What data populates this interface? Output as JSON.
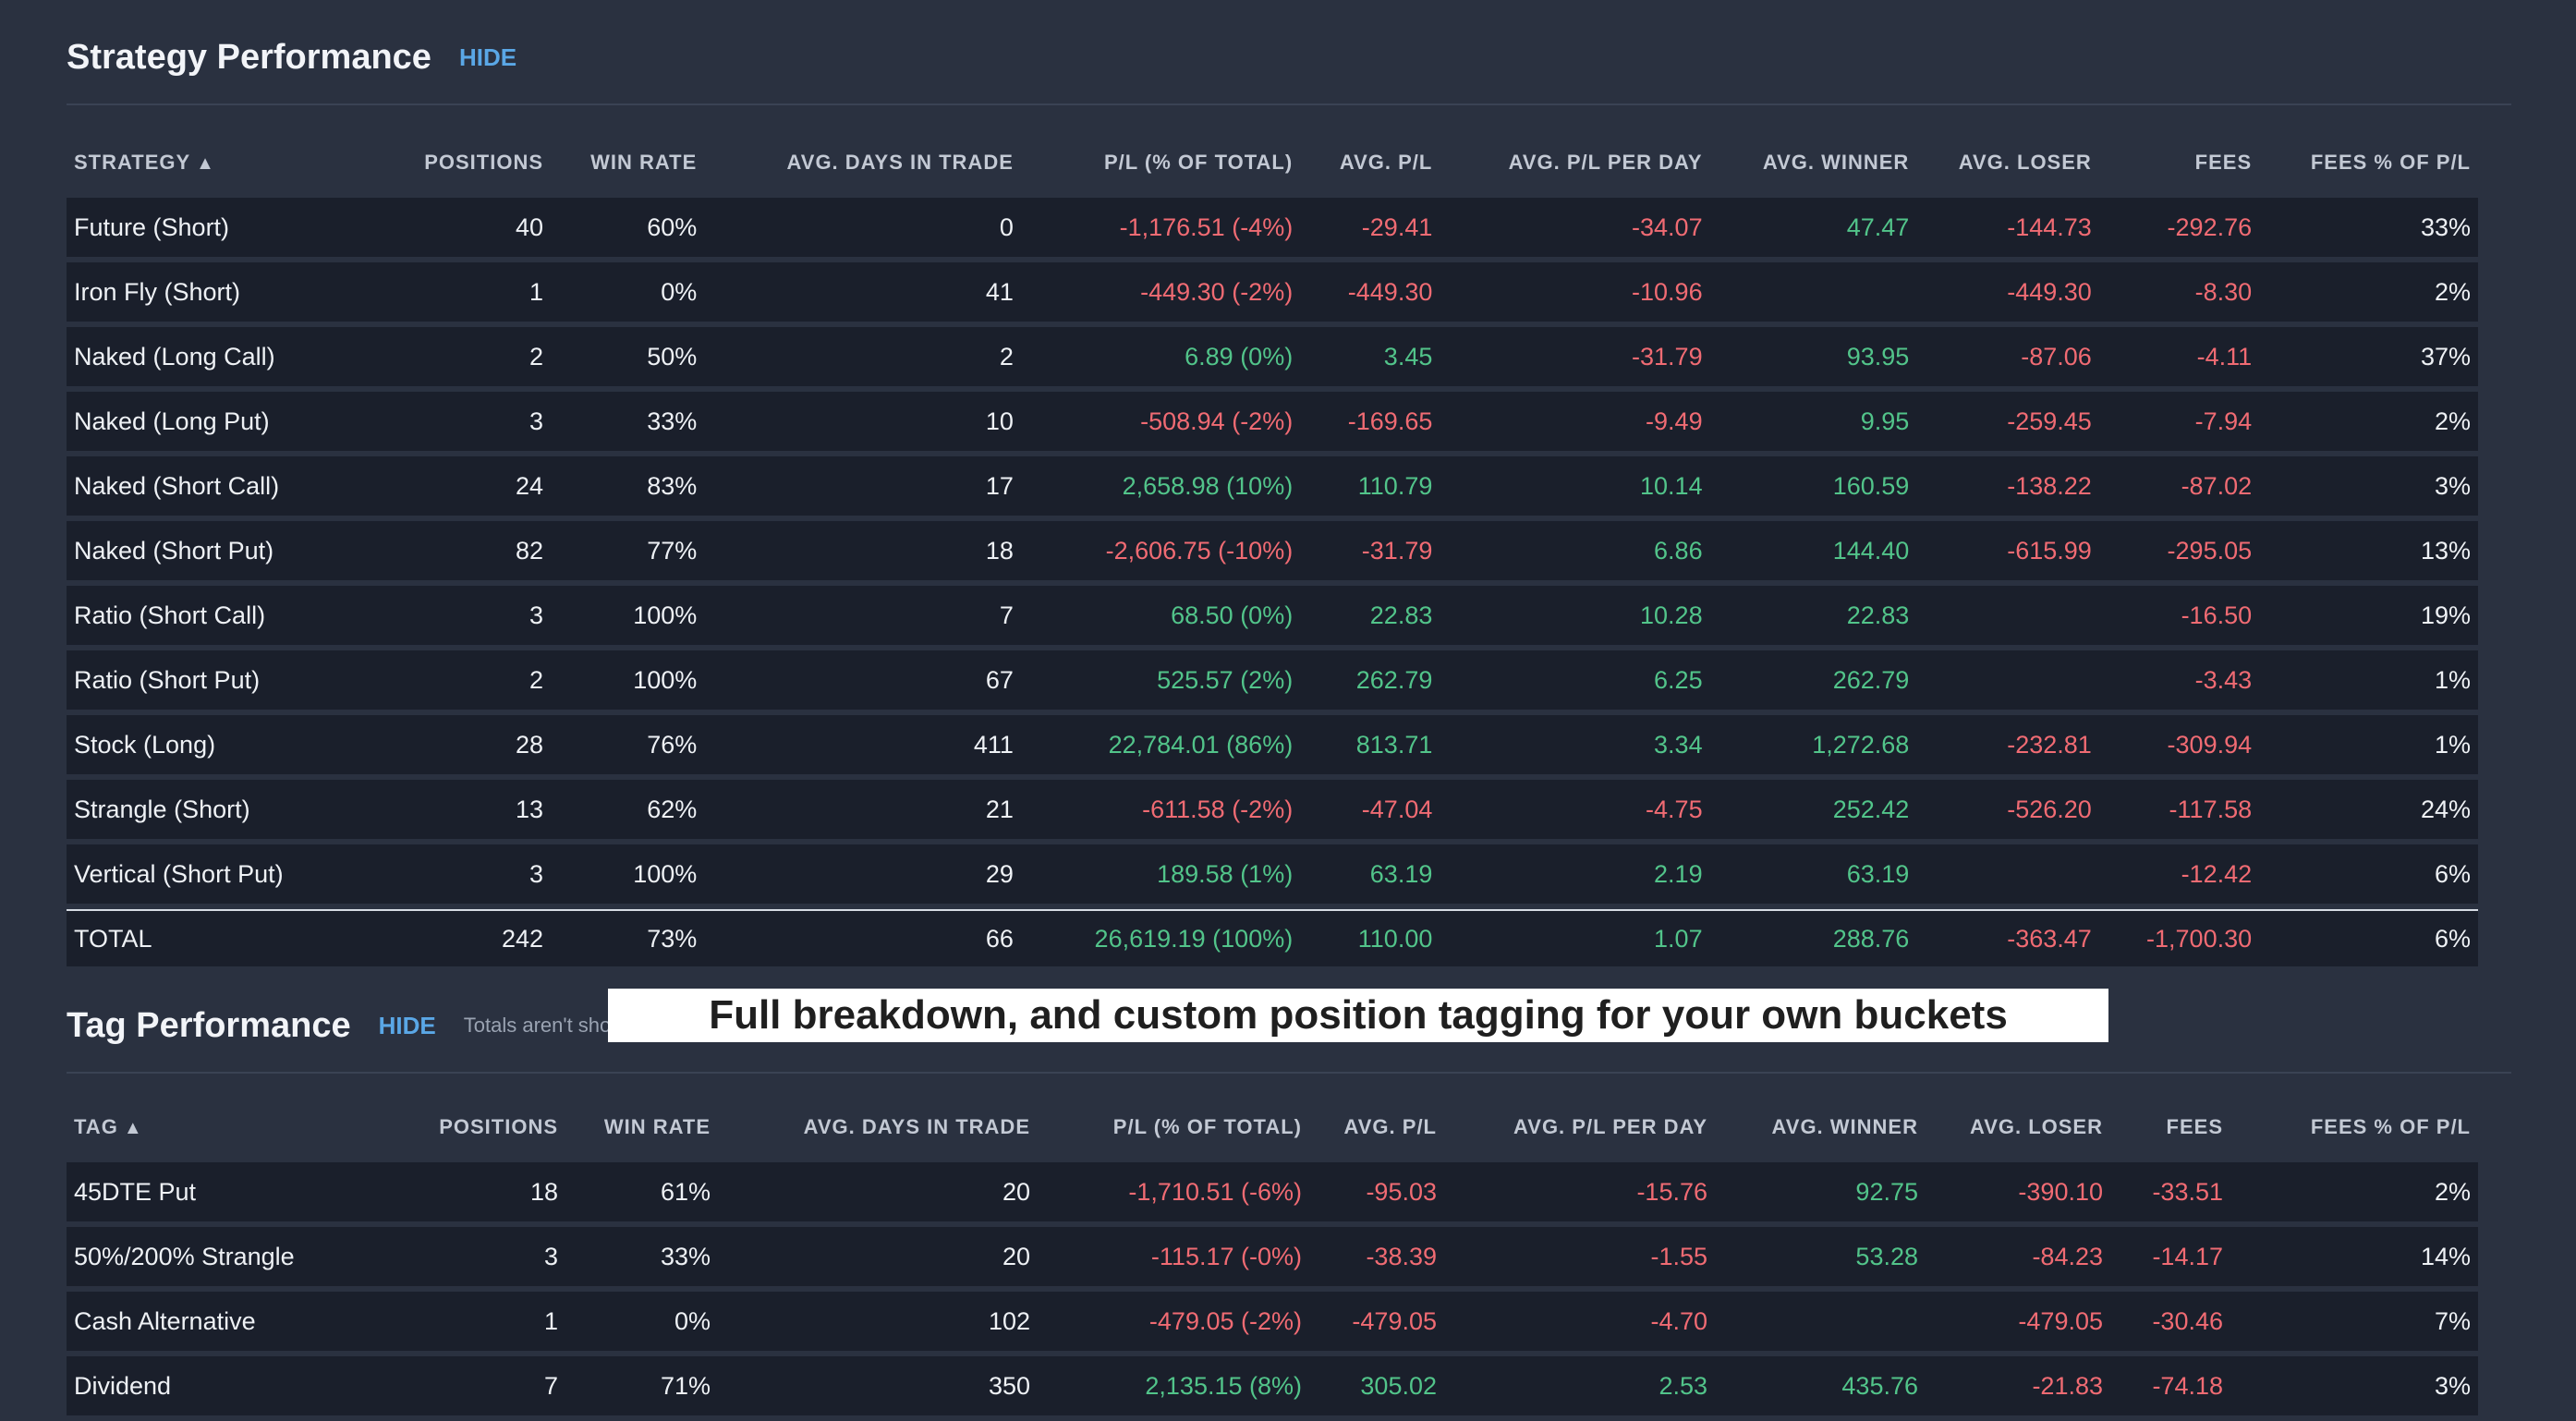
{
  "strategy": {
    "title": "Strategy Performance",
    "hide_label": "HIDE",
    "headers": [
      "STRATEGY",
      "POSITIONS",
      "WIN RATE",
      "AVG. DAYS IN TRADE",
      "P/L (% OF TOTAL)",
      "AVG. P/L",
      "AVG. P/L PER DAY",
      "AVG. WINNER",
      "AVG. LOSER",
      "FEES",
      "FEES % OF P/L"
    ],
    "rows": [
      [
        "Future (Short)",
        "40",
        "60%",
        "0",
        "-1,176.51 (-4%)",
        "-29.41",
        "-34.07",
        "47.47",
        "-144.73",
        "-292.76",
        "33%"
      ],
      [
        "Iron Fly (Short)",
        "1",
        "0%",
        "41",
        "-449.30 (-2%)",
        "-449.30",
        "-10.96",
        "",
        "-449.30",
        "-8.30",
        "2%"
      ],
      [
        "Naked (Long Call)",
        "2",
        "50%",
        "2",
        "6.89 (0%)",
        "3.45",
        "-31.79",
        "93.95",
        "-87.06",
        "-4.11",
        "37%"
      ],
      [
        "Naked (Long Put)",
        "3",
        "33%",
        "10",
        "-508.94 (-2%)",
        "-169.65",
        "-9.49",
        "9.95",
        "-259.45",
        "-7.94",
        "2%"
      ],
      [
        "Naked (Short Call)",
        "24",
        "83%",
        "17",
        "2,658.98 (10%)",
        "110.79",
        "10.14",
        "160.59",
        "-138.22",
        "-87.02",
        "3%"
      ],
      [
        "Naked (Short Put)",
        "82",
        "77%",
        "18",
        "-2,606.75 (-10%)",
        "-31.79",
        "6.86",
        "144.40",
        "-615.99",
        "-295.05",
        "13%"
      ],
      [
        "Ratio (Short Call)",
        "3",
        "100%",
        "7",
        "68.50 (0%)",
        "22.83",
        "10.28",
        "22.83",
        "",
        "-16.50",
        "19%"
      ],
      [
        "Ratio (Short Put)",
        "2",
        "100%",
        "67",
        "525.57 (2%)",
        "262.79",
        "6.25",
        "262.79",
        "",
        "-3.43",
        "1%"
      ],
      [
        "Stock (Long)",
        "28",
        "76%",
        "411",
        "22,784.01 (86%)",
        "813.71",
        "3.34",
        "1,272.68",
        "-232.81",
        "-309.94",
        "1%"
      ],
      [
        "Strangle (Short)",
        "13",
        "62%",
        "21",
        "-611.58 (-2%)",
        "-47.04",
        "-4.75",
        "252.42",
        "-526.20",
        "-117.58",
        "24%"
      ],
      [
        "Vertical (Short Put)",
        "3",
        "100%",
        "29",
        "189.58 (1%)",
        "63.19",
        "2.19",
        "63.19",
        "",
        "-12.42",
        "6%"
      ]
    ],
    "total": [
      "TOTAL",
      "242",
      "73%",
      "66",
      "26,619.19 (100%)",
      "110.00",
      "1.07",
      "288.76",
      "-363.47",
      "-1,700.30",
      "6%"
    ]
  },
  "tags": {
    "title": "Tag Performance",
    "hide_label": "HIDE",
    "note": "Totals aren't sho",
    "headers": [
      "TAG",
      "POSITIONS",
      "WIN RATE",
      "AVG. DAYS IN TRADE",
      "P/L (% OF TOTAL)",
      "AVG. P/L",
      "AVG. P/L PER DAY",
      "AVG. WINNER",
      "AVG. LOSER",
      "FEES",
      "FEES % OF P/L"
    ],
    "rows": [
      [
        "45DTE Put",
        "18",
        "61%",
        "20",
        "-1,710.51 (-6%)",
        "-95.03",
        "-15.76",
        "92.75",
        "-390.10",
        "-33.51",
        "2%"
      ],
      [
        "50%/200% Strangle",
        "3",
        "33%",
        "20",
        "-115.17 (-0%)",
        "-38.39",
        "-1.55",
        "53.28",
        "-84.23",
        "-14.17",
        "14%"
      ],
      [
        "Cash Alternative",
        "1",
        "0%",
        "102",
        "-479.05 (-2%)",
        "-479.05",
        "-4.70",
        "",
        "-479.05",
        "-30.46",
        "7%"
      ],
      [
        "Dividend",
        "7",
        "71%",
        "350",
        "2,135.15 (8%)",
        "305.02",
        "2.53",
        "435.76",
        "-21.83",
        "-74.18",
        "3%"
      ]
    ]
  },
  "banner": "Full breakdown, and custom position tagging for your own buckets",
  "colors": {
    "positive": "#52c48a",
    "negative": "#f06b73",
    "link": "#5aa7e6",
    "background": "#2a3140",
    "row": "#1a1f2b"
  }
}
